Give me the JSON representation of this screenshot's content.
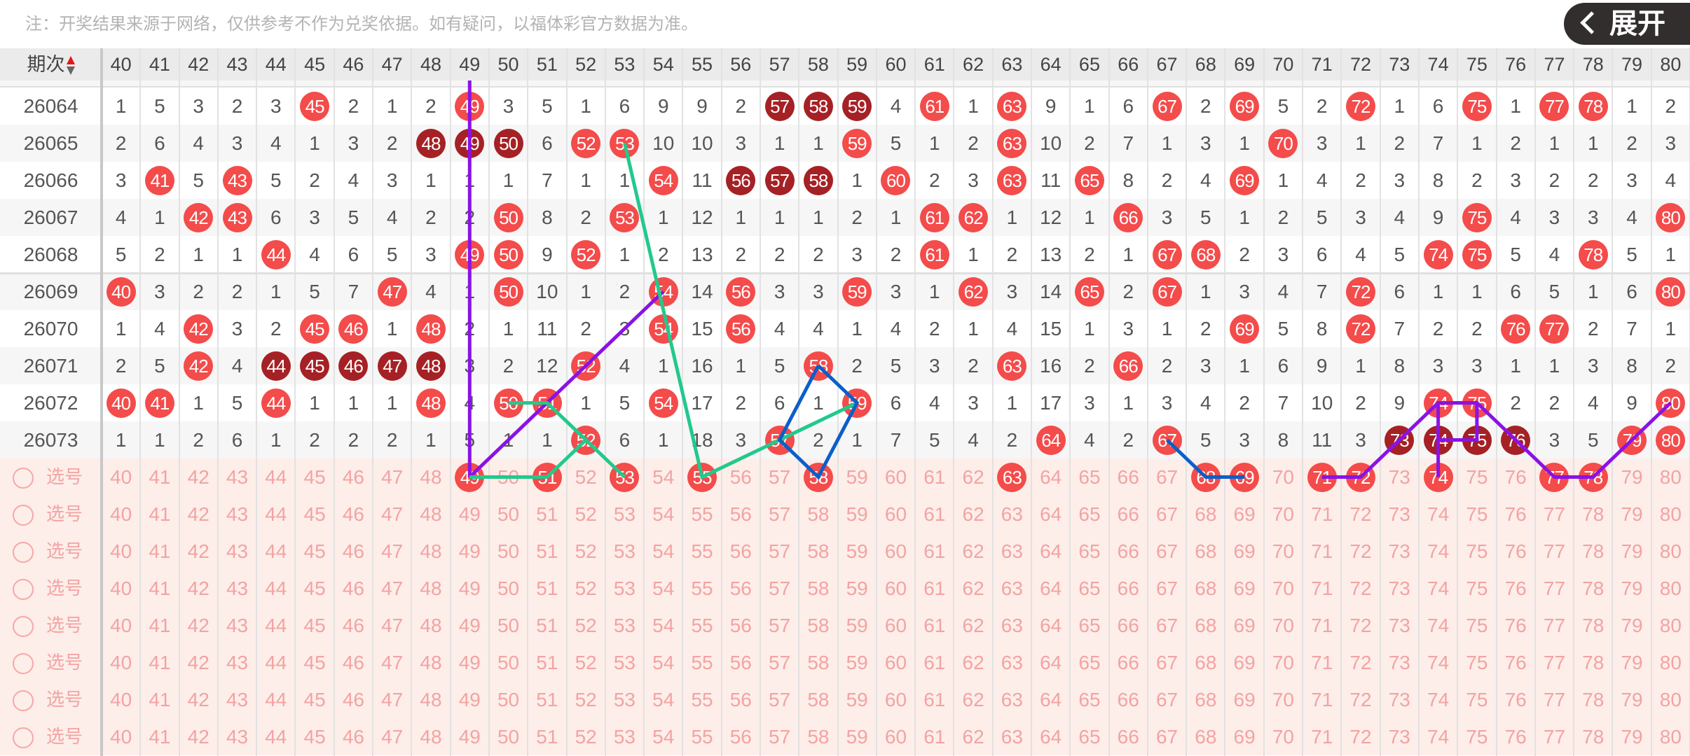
{
  "note": "注：开奖结果来源于网络，仅供参考不作为兑奖依据。如有疑问，以福体彩官方数据为准。",
  "header": {
    "issue_label": "期次",
    "sort_icon": "sort-up-down-icon",
    "columns": [
      40,
      41,
      42,
      43,
      44,
      45,
      46,
      47,
      48,
      49,
      50,
      51,
      52,
      53,
      54,
      55,
      56,
      57,
      58,
      59,
      60,
      61,
      62,
      63,
      64,
      65,
      66,
      67,
      68,
      69,
      70,
      71,
      72,
      73,
      74,
      75,
      76,
      77,
      78,
      79,
      80
    ]
  },
  "colors": {
    "hit": "#f44b4b",
    "consecutive_hit": "#a52125",
    "select_bg": "#fdeee9",
    "select_text": "#f3a3a3",
    "line_purple": "#8a12e6",
    "line_green": "#22c98c",
    "line_blue": "#0b5fc9"
  },
  "rows": [
    {
      "issue": "26064",
      "values": [
        "1",
        "5",
        "3",
        "2",
        "3",
        "45",
        "2",
        "1",
        "2",
        "49",
        "3",
        "5",
        "1",
        "6",
        "9",
        "9",
        "2",
        "57",
        "58",
        "59",
        "4",
        "61",
        "1",
        "63",
        "9",
        "1",
        "6",
        "67",
        "2",
        "69",
        "5",
        "2",
        "72",
        "1",
        "6",
        "75",
        "1",
        "77",
        "78",
        "1",
        "2"
      ],
      "hits": [
        45,
        49,
        57,
        58,
        59,
        61,
        63,
        67,
        69,
        72,
        75,
        77,
        78
      ],
      "consecutive": [
        57,
        58,
        59
      ]
    },
    {
      "issue": "26065",
      "values": [
        "2",
        "6",
        "4",
        "3",
        "4",
        "1",
        "3",
        "2",
        "48",
        "49",
        "50",
        "6",
        "52",
        "53",
        "10",
        "10",
        "3",
        "1",
        "1",
        "59",
        "5",
        "1",
        "2",
        "63",
        "10",
        "2",
        "7",
        "1",
        "3",
        "1",
        "70",
        "3",
        "1",
        "2",
        "7",
        "1",
        "2",
        "1",
        "1",
        "2",
        "3"
      ],
      "hits": [
        48,
        49,
        50,
        52,
        53,
        59,
        63,
        70
      ],
      "consecutive": [
        48,
        49,
        50
      ]
    },
    {
      "issue": "26066",
      "values": [
        "3",
        "41",
        "5",
        "43",
        "5",
        "2",
        "4",
        "3",
        "1",
        "1",
        "1",
        "7",
        "1",
        "1",
        "54",
        "11",
        "56",
        "57",
        "58",
        "1",
        "60",
        "2",
        "3",
        "63",
        "11",
        "65",
        "8",
        "2",
        "4",
        "69",
        "1",
        "4",
        "2",
        "3",
        "8",
        "2",
        "3",
        "2",
        "2",
        "3",
        "4"
      ],
      "hits": [
        41,
        43,
        54,
        56,
        57,
        58,
        60,
        63,
        65,
        69
      ],
      "consecutive": [
        56,
        57,
        58
      ]
    },
    {
      "issue": "26067",
      "values": [
        "4",
        "1",
        "42",
        "43",
        "6",
        "3",
        "5",
        "4",
        "2",
        "2",
        "50",
        "8",
        "2",
        "53",
        "1",
        "12",
        "1",
        "1",
        "1",
        "2",
        "1",
        "61",
        "62",
        "1",
        "12",
        "1",
        "66",
        "3",
        "5",
        "1",
        "2",
        "5",
        "3",
        "4",
        "9",
        "75",
        "4",
        "3",
        "3",
        "4",
        "80"
      ],
      "hits": [
        42,
        43,
        50,
        53,
        61,
        62,
        66,
        75,
        80
      ],
      "consecutive": []
    },
    {
      "issue": "26068",
      "values": [
        "5",
        "2",
        "1",
        "1",
        "44",
        "4",
        "6",
        "5",
        "3",
        "49",
        "50",
        "9",
        "52",
        "1",
        "2",
        "13",
        "2",
        "2",
        "2",
        "3",
        "2",
        "61",
        "1",
        "2",
        "13",
        "2",
        "1",
        "67",
        "68",
        "2",
        "3",
        "6",
        "4",
        "5",
        "74",
        "75",
        "5",
        "4",
        "78",
        "5",
        "1"
      ],
      "hits": [
        44,
        49,
        50,
        52,
        61,
        67,
        68,
        74,
        75,
        78
      ],
      "consecutive": []
    },
    {
      "issue": "26069",
      "values": [
        "40",
        "3",
        "2",
        "2",
        "1",
        "5",
        "7",
        "47",
        "4",
        "1",
        "50",
        "10",
        "1",
        "2",
        "54",
        "14",
        "56",
        "3",
        "3",
        "59",
        "3",
        "1",
        "62",
        "3",
        "14",
        "65",
        "2",
        "67",
        "1",
        "3",
        "4",
        "7",
        "72",
        "6",
        "1",
        "1",
        "6",
        "5",
        "1",
        "6",
        "80"
      ],
      "hits": [
        40,
        47,
        50,
        54,
        56,
        59,
        62,
        65,
        67,
        72,
        80
      ],
      "consecutive": []
    },
    {
      "issue": "26070",
      "values": [
        "1",
        "4",
        "42",
        "3",
        "2",
        "45",
        "46",
        "1",
        "48",
        "2",
        "1",
        "11",
        "2",
        "3",
        "54",
        "15",
        "56",
        "4",
        "4",
        "1",
        "4",
        "2",
        "1",
        "4",
        "15",
        "1",
        "3",
        "1",
        "2",
        "69",
        "5",
        "8",
        "72",
        "7",
        "2",
        "2",
        "76",
        "77",
        "2",
        "7",
        "1"
      ],
      "hits": [
        42,
        45,
        46,
        48,
        54,
        56,
        69,
        72,
        76,
        77
      ],
      "consecutive": []
    },
    {
      "issue": "26071",
      "values": [
        "2",
        "5",
        "42",
        "4",
        "44",
        "45",
        "46",
        "47",
        "48",
        "3",
        "2",
        "12",
        "52",
        "4",
        "1",
        "16",
        "1",
        "5",
        "58",
        "2",
        "5",
        "3",
        "2",
        "63",
        "16",
        "2",
        "66",
        "2",
        "3",
        "1",
        "6",
        "9",
        "1",
        "8",
        "3",
        "3",
        "1",
        "1",
        "3",
        "8",
        "2"
      ],
      "hits": [
        42,
        44,
        45,
        46,
        47,
        48,
        52,
        58,
        63,
        66
      ],
      "consecutive": [
        44,
        45,
        46,
        47,
        48
      ]
    },
    {
      "issue": "26072",
      "values": [
        "40",
        "41",
        "1",
        "5",
        "44",
        "1",
        "1",
        "1",
        "48",
        "4",
        "50",
        "51",
        "1",
        "5",
        "54",
        "17",
        "2",
        "6",
        "1",
        "59",
        "6",
        "4",
        "3",
        "1",
        "17",
        "3",
        "1",
        "3",
        "4",
        "2",
        "7",
        "10",
        "2",
        "9",
        "74",
        "75",
        "2",
        "2",
        "4",
        "9",
        "80"
      ],
      "hits": [
        40,
        41,
        44,
        48,
        50,
        51,
        54,
        59,
        74,
        75,
        80
      ],
      "consecutive": []
    },
    {
      "issue": "26073",
      "values": [
        "1",
        "1",
        "2",
        "6",
        "1",
        "2",
        "2",
        "2",
        "1",
        "5",
        "1",
        "1",
        "52",
        "6",
        "1",
        "18",
        "3",
        "57",
        "2",
        "1",
        "7",
        "5",
        "4",
        "2",
        "64",
        "4",
        "2",
        "67",
        "5",
        "3",
        "8",
        "11",
        "3",
        "73",
        "74",
        "75",
        "76",
        "3",
        "5",
        "79",
        "80"
      ],
      "hits": [
        52,
        57,
        64,
        67,
        73,
        74,
        75,
        76,
        79,
        80
      ],
      "consecutive": [
        73,
        74,
        75,
        76
      ]
    }
  ],
  "select_rows": {
    "label": "选号",
    "count": 8,
    "first_row_selected": [
      49,
      51,
      53,
      55,
      58,
      63,
      68,
      69,
      71,
      72,
      74,
      77,
      78
    ]
  },
  "trend_lines": [
    {
      "color": "purple",
      "points": [
        [
          49,
          "top"
        ],
        [
          49,
          "select"
        ]
      ]
    },
    {
      "color": "purple",
      "points": [
        [
          49,
          "select"
        ],
        [
          54,
          "26069"
        ]
      ]
    },
    {
      "color": "green",
      "points": [
        [
          53,
          "26065"
        ],
        [
          55,
          "select"
        ],
        [
          57,
          "26073"
        ],
        [
          59,
          "26072"
        ]
      ]
    },
    {
      "color": "green",
      "points": [
        [
          50,
          "26072"
        ],
        [
          51,
          "26072"
        ],
        [
          53,
          "select"
        ]
      ]
    },
    {
      "color": "green",
      "points": [
        [
          49,
          "select"
        ],
        [
          51,
          "select"
        ],
        [
          52,
          "26073"
        ]
      ]
    },
    {
      "color": "blue",
      "points": [
        [
          58,
          "26071"
        ],
        [
          59,
          "26072"
        ],
        [
          58,
          "select"
        ],
        [
          57,
          "26073"
        ],
        [
          58,
          "26071"
        ]
      ]
    },
    {
      "color": "blue",
      "points": [
        [
          67,
          "26073"
        ],
        [
          68,
          "select"
        ],
        [
          69,
          "select"
        ]
      ]
    },
    {
      "color": "purple",
      "points": [
        [
          71,
          "select"
        ],
        [
          72,
          "select"
        ],
        [
          74,
          "26072"
        ],
        [
          75,
          "26072"
        ],
        [
          77,
          "select"
        ],
        [
          78,
          "select"
        ],
        [
          80,
          "26072"
        ]
      ]
    },
    {
      "color": "purple",
      "points": [
        [
          74,
          "26072"
        ],
        [
          74,
          "select"
        ]
      ]
    },
    {
      "color": "purple",
      "points": [
        [
          75,
          "26072"
        ],
        [
          75,
          "26073"
        ],
        [
          74,
          "26073"
        ]
      ]
    }
  ],
  "expand_button": {
    "label": "展开",
    "icon": "chevron-left-icon"
  }
}
